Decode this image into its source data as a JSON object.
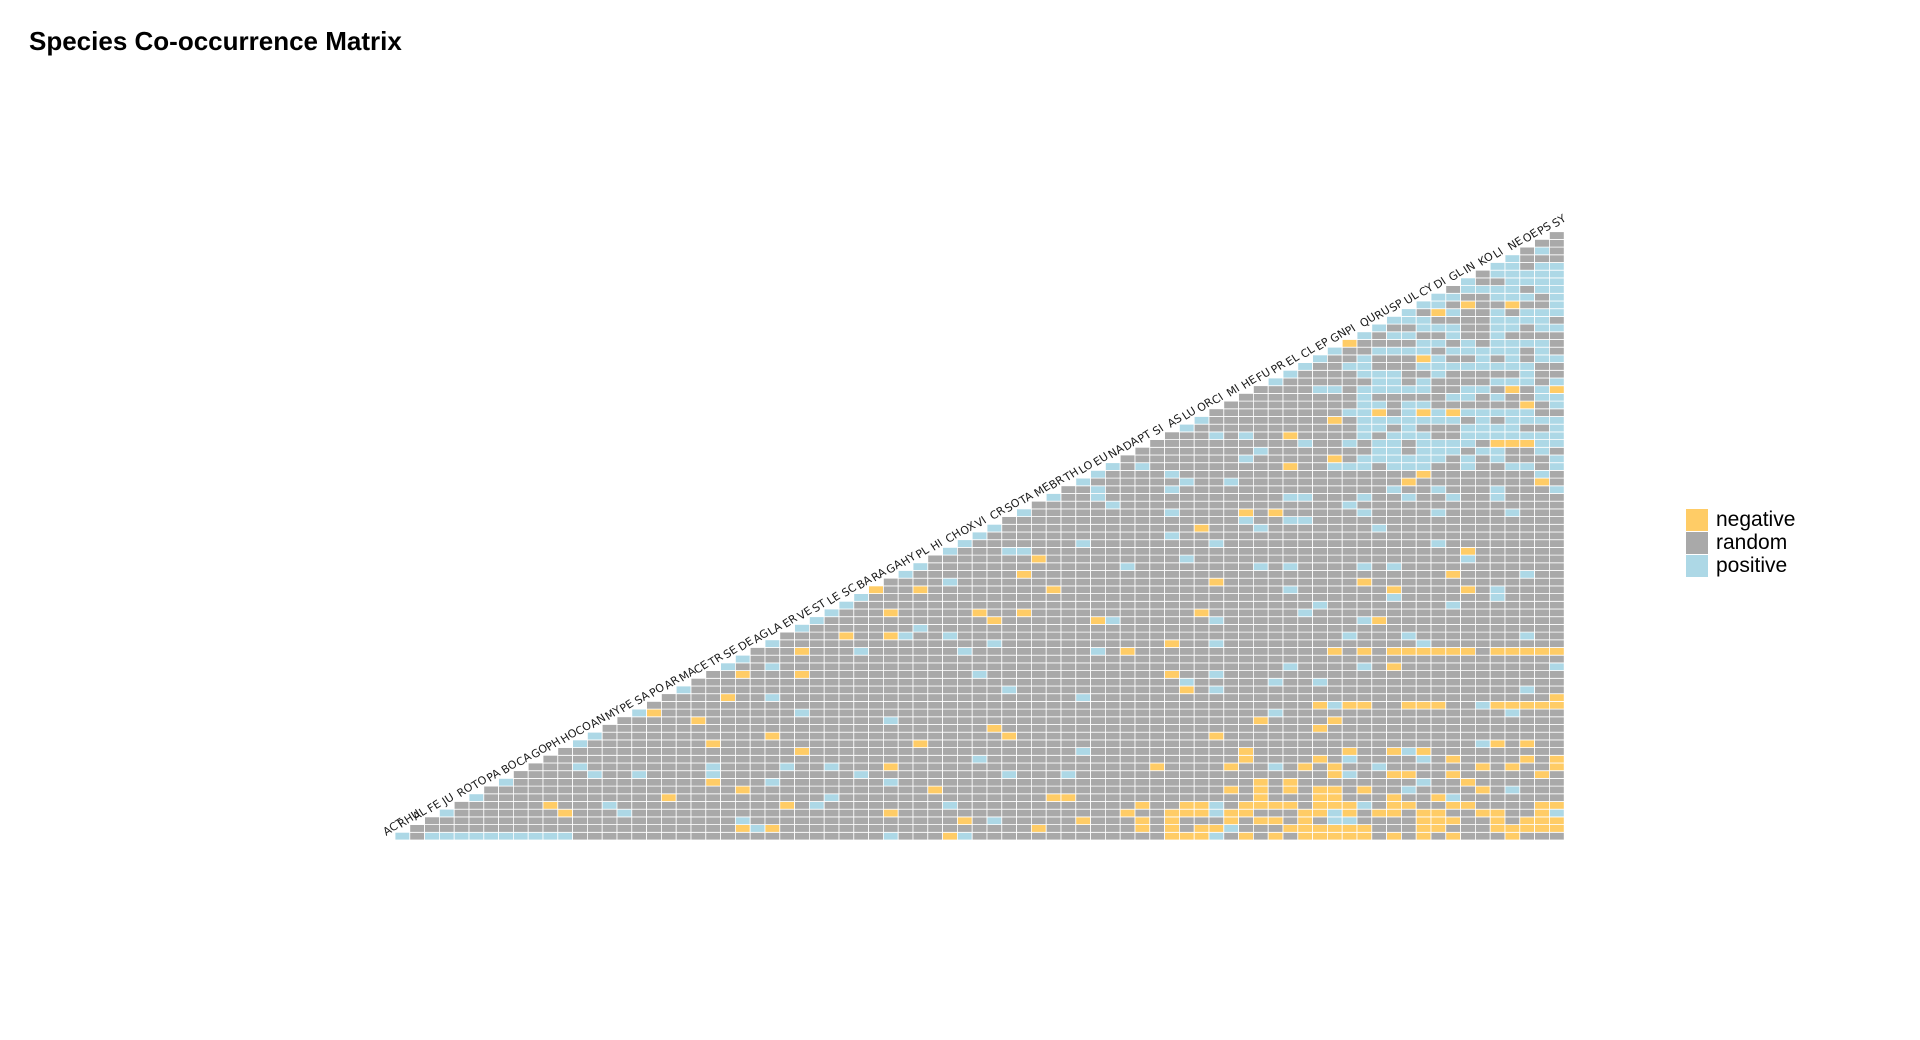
{
  "chart_data": {
    "type": "heatmap",
    "title": "Species Co-occurrence Matrix",
    "n_species": 80,
    "legend": {
      "position": "right",
      "items": [
        {
          "label": "negative",
          "color": "#FFCC66"
        },
        {
          "label": "random",
          "color": "#A9A9A9"
        },
        {
          "label": "positive",
          "color": "#ADD8E6"
        }
      ]
    },
    "species_labels": [
      "ACT",
      "RHU",
      "AL",
      "FE",
      "JU",
      "RO",
      "TO",
      "PA",
      "BO",
      "CA",
      "GO",
      "PH",
      "HO",
      "CO",
      "AN",
      "MY",
      "PE",
      "SA",
      "PO",
      "AR",
      "MA",
      "CE",
      "TR",
      "SE",
      "DE",
      "AG",
      "LA",
      "ER",
      "VE",
      "ST",
      "LE",
      "SC",
      "BA",
      "RA",
      "GA",
      "HY",
      "PL",
      "HI",
      "CH",
      "OX",
      "VI",
      "CR",
      "SO",
      "TA",
      "ME",
      "BR",
      "TH",
      "LO",
      "EU",
      "NA",
      "DA",
      "PT",
      "SI",
      "AS",
      "LU",
      "OR",
      "CI",
      "MI",
      "HE",
      "FU",
      "PR",
      "EL",
      "CL",
      "EP",
      "GN",
      "PI",
      "QU",
      "RU",
      "SP",
      "UL",
      "CY",
      "DI",
      "GL",
      "IN",
      "KO",
      "LI",
      "NE",
      "OE",
      "PS",
      "SY"
    ],
    "cells_description": "Lower-triangular matrix of pairwise associations; each cell is one of negative, random, or positive. Most pairs are random; positive pairs concentrate in the upper-right corner and along the first row; negative pairs concentrate in the bottom rows toward the right.",
    "seed": 20240611
  }
}
